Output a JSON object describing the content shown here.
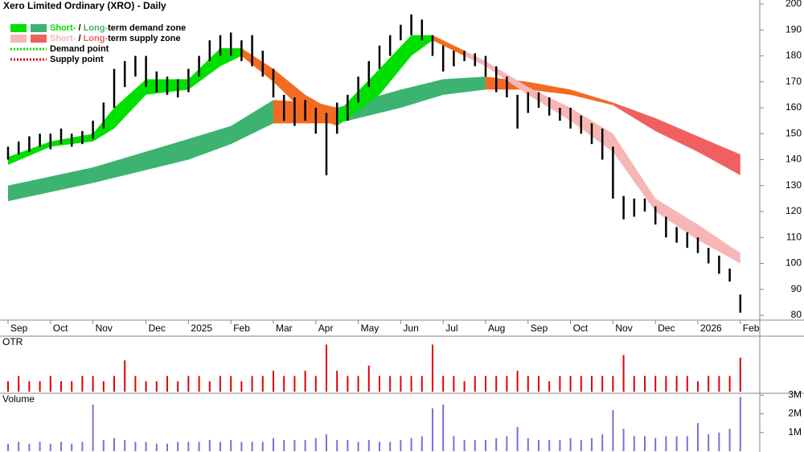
{
  "chart_data": {
    "type": "ohlc",
    "title": "Xero Limited Ordinary (XRO) - Daily",
    "categories": [
      "Sep",
      null,
      null,
      null,
      "Oct",
      null,
      null,
      null,
      "Nov",
      null,
      null,
      null,
      null,
      "Dec",
      null,
      null,
      null,
      "2025",
      null,
      null,
      null,
      "Feb",
      null,
      null,
      null,
      "Mar",
      null,
      null,
      null,
      "Apr",
      null,
      null,
      null,
      "May",
      null,
      null,
      null,
      "Jun",
      null,
      null,
      null,
      "Jul",
      null,
      null,
      null,
      "Aug",
      null,
      null,
      null,
      "Sep",
      null,
      null,
      null,
      "Oct",
      null,
      null,
      null,
      "Nov",
      null,
      null,
      null,
      "Dec",
      null,
      null,
      null,
      "2026",
      null,
      null,
      null,
      "Feb"
    ],
    "low": [
      140,
      142,
      143,
      145,
      144,
      146,
      145,
      146,
      148,
      152,
      160,
      168,
      172,
      168,
      166,
      165,
      164,
      166,
      172,
      178,
      180,
      180,
      178,
      176,
      172,
      164,
      155,
      153,
      155,
      150,
      134,
      150,
      155,
      162,
      168,
      175,
      180,
      186,
      188,
      186,
      180,
      174,
      176,
      178,
      176,
      172,
      166,
      164,
      152,
      158,
      160,
      157,
      155,
      152,
      150,
      146,
      140,
      125,
      117,
      118,
      120,
      115,
      110,
      108,
      106,
      104,
      100,
      96,
      93,
      81
    ],
    "high": [
      145,
      147,
      149,
      150,
      150,
      152,
      150,
      151,
      155,
      162,
      175,
      178,
      180,
      180,
      174,
      172,
      171,
      175,
      180,
      186,
      188,
      189,
      186,
      188,
      182,
      175,
      165,
      164,
      163,
      160,
      158,
      162,
      165,
      172,
      178,
      184,
      188,
      192,
      196,
      194,
      188,
      184,
      182,
      182,
      181,
      180,
      176,
      172,
      165,
      166,
      166,
      164,
      160,
      160,
      157,
      154,
      152,
      145,
      126,
      125,
      125,
      122,
      118,
      114,
      112,
      110,
      106,
      103,
      98,
      88
    ],
    "price_color": "#000000",
    "ylim": [
      80,
      200
    ],
    "yticks": [
      80,
      90,
      100,
      110,
      120,
      130,
      140,
      150,
      160,
      170,
      180,
      190,
      200
    ],
    "zones": [
      {
        "color": "#3cb371",
        "x": [
          0,
          8,
          17,
          21,
          25
        ],
        "upper": [
          130,
          137,
          148,
          153,
          163
        ],
        "lower": [
          124,
          131,
          140,
          146,
          154
        ]
      },
      {
        "color": "#f26b21",
        "x": [
          25,
          29,
          31
        ],
        "upper": [
          163,
          162,
          160
        ],
        "lower": [
          154,
          154,
          154
        ]
      },
      {
        "color": "#3cb371",
        "x": [
          31,
          37,
          41,
          45
        ],
        "upper": [
          160,
          167,
          171,
          172
        ],
        "lower": [
          154,
          160,
          165,
          167
        ]
      },
      {
        "color": "#f26b21",
        "x": [
          45,
          49,
          53,
          57
        ],
        "upper": [
          172,
          170,
          167,
          162
        ],
        "lower": [
          167,
          167,
          165,
          161
        ]
      },
      {
        "color": "#f06060",
        "x": [
          57,
          61,
          65,
          69
        ],
        "upper": [
          162,
          156,
          149,
          142
        ],
        "lower": [
          161,
          151,
          143,
          134
        ]
      },
      {
        "color": "#00e000",
        "x": [
          0,
          4,
          8,
          10,
          13,
          17,
          20,
          22
        ],
        "upper": [
          141,
          147,
          150,
          160,
          171,
          171,
          183,
          183
        ],
        "lower": [
          138,
          145,
          147,
          152,
          165,
          167,
          176,
          180
        ]
      },
      {
        "color": "#f26b21",
        "x": [
          22,
          25,
          28,
          31
        ],
        "upper": [
          183,
          175,
          165,
          158
        ],
        "lower": [
          180,
          170,
          158,
          153
        ]
      },
      {
        "color": "#00e000",
        "x": [
          31,
          35,
          38,
          40
        ],
        "upper": [
          158,
          175,
          188,
          188
        ],
        "lower": [
          153,
          165,
          180,
          186
        ]
      },
      {
        "color": "#f26b21",
        "x": [
          40,
          43
        ],
        "upper": [
          188,
          182
        ],
        "lower": [
          186,
          180
        ]
      },
      {
        "color": "#f7b6b6",
        "x": [
          43,
          45,
          49,
          53,
          57,
          61,
          65,
          69
        ],
        "upper": [
          182,
          178,
          168,
          160,
          150,
          125,
          115,
          104
        ],
        "lower": [
          180,
          176,
          165,
          155,
          143,
          120,
          109,
          100
        ]
      }
    ],
    "legend": [
      {
        "colors": [
          "#00e000",
          "#3cb371"
        ],
        "parts": [
          "Short-",
          " / ",
          "Long-",
          "term demand zone"
        ],
        "part_colors": [
          "#00e000",
          "#000000",
          "#3cb371",
          "#000000"
        ]
      },
      {
        "colors": [
          "#f7b6b6",
          "#f06060"
        ],
        "parts": [
          "Short-",
          " / ",
          "Long-",
          "term supply zone"
        ],
        "part_colors": [
          "#f7b6b6",
          "#000000",
          "#f06060",
          "#000000"
        ]
      },
      {
        "colors": [
          "#00e000"
        ],
        "parts": [
          "Demand point"
        ],
        "part_colors": [
          "#000000"
        ]
      },
      {
        "colors": [
          "#e00000"
        ],
        "parts": [
          "Supply point"
        ],
        "part_colors": [
          "#000000"
        ]
      }
    ],
    "otr_label": "OTR",
    "otr_color": "#e00000",
    "otr_ylim": [
      0,
      10
    ],
    "otr": [
      2,
      3,
      2,
      2,
      3,
      2,
      2,
      3,
      3,
      2,
      3,
      6,
      3,
      2,
      2,
      3,
      2,
      3,
      3,
      2,
      3,
      3,
      2,
      3,
      3,
      4,
      3,
      3,
      4,
      3,
      9,
      4,
      3,
      3,
      5,
      3,
      3,
      3,
      3,
      3,
      9,
      3,
      3,
      2,
      3,
      3,
      3,
      3,
      4,
      3,
      3,
      2,
      3,
      3,
      3,
      3,
      3,
      3,
      7,
      3,
      3,
      3,
      3,
      3,
      3,
      2,
      3,
      3,
      3,
      6.5
    ],
    "volume_label": "Volume",
    "volume_color": "#7b6fd6",
    "volume_ylim": [
      0,
      3.1
    ],
    "volume_ticks": [
      {
        "value": 1,
        "label": "1M"
      },
      {
        "value": 2,
        "label": "2M"
      },
      {
        "value": 3,
        "label": "3M"
      }
    ],
    "volume": [
      0.4,
      0.5,
      0.4,
      0.5,
      0.4,
      0.5,
      0.4,
      0.5,
      2.5,
      0.6,
      0.7,
      0.6,
      0.5,
      0.5,
      0.4,
      0.4,
      0.5,
      0.5,
      0.5,
      0.6,
      0.5,
      0.6,
      0.5,
      0.5,
      0.5,
      0.7,
      0.6,
      0.6,
      0.6,
      0.7,
      0.9,
      0.6,
      0.6,
      0.5,
      0.6,
      0.5,
      0.5,
      0.6,
      0.7,
      0.8,
      2.3,
      2.5,
      0.8,
      0.6,
      0.6,
      0.6,
      0.7,
      0.8,
      1.3,
      0.7,
      0.6,
      0.6,
      0.6,
      0.7,
      0.6,
      0.7,
      0.9,
      2.2,
      1.2,
      0.8,
      0.8,
      0.7,
      0.8,
      0.8,
      0.8,
      1.5,
      0.9,
      1.0,
      1.2,
      2.9
    ]
  }
}
